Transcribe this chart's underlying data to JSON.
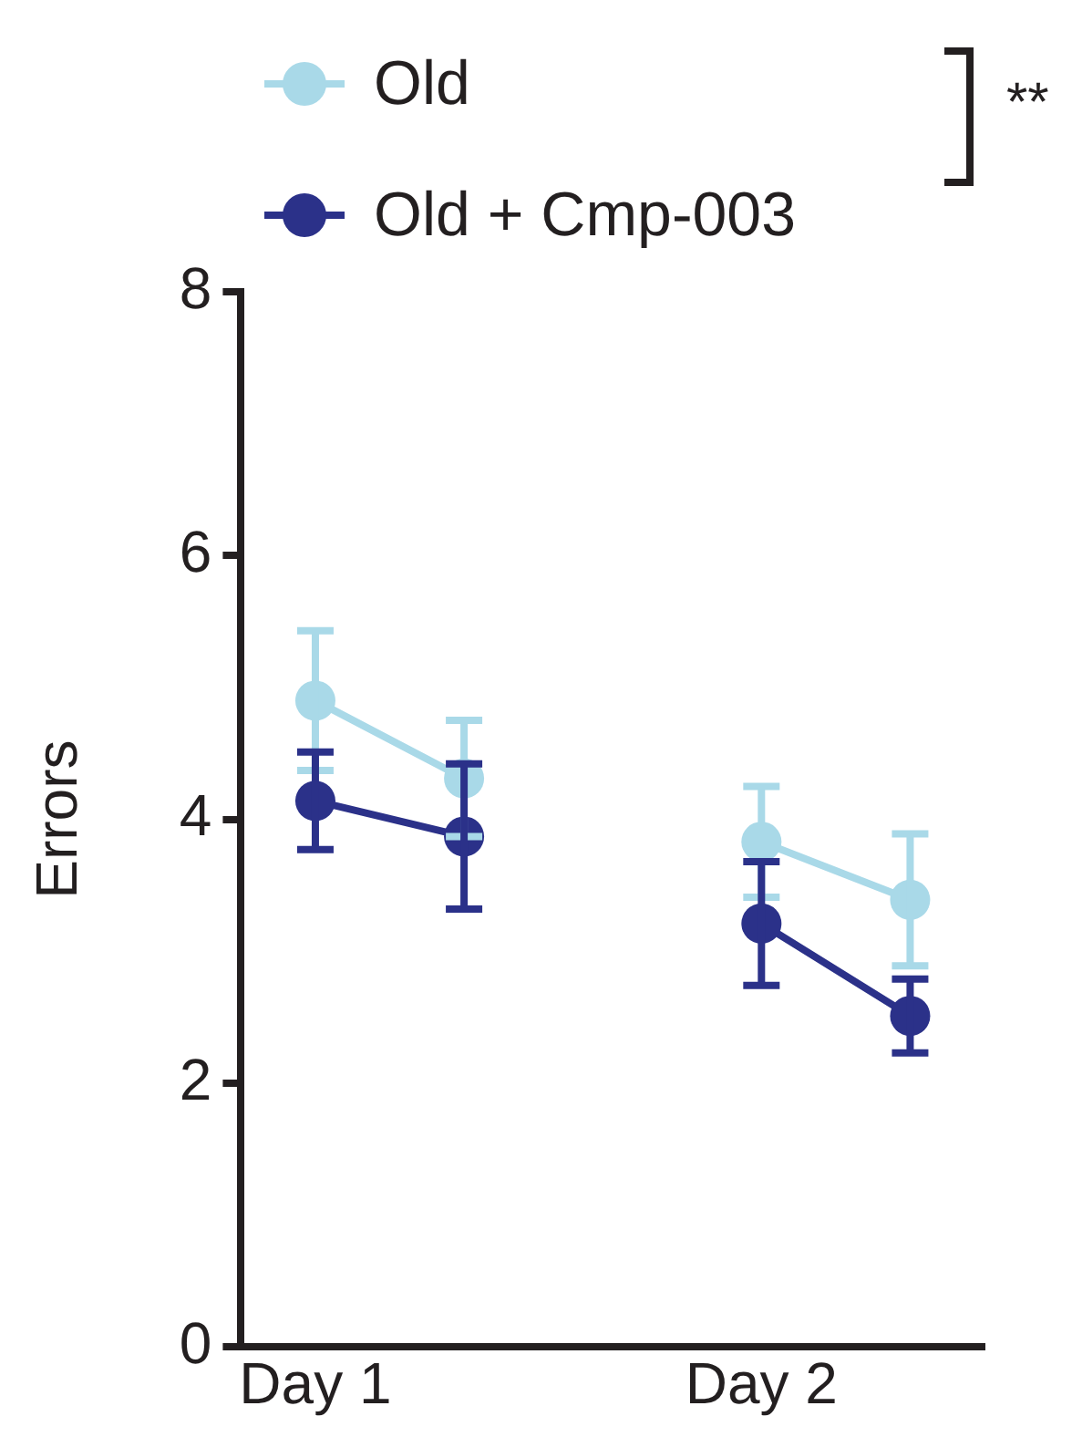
{
  "chart_data": {
    "type": "line",
    "ylabel": "Errors",
    "categories": [
      "Day 1",
      null,
      null,
      "Day 2",
      null
    ],
    "ylim": [
      0,
      8
    ],
    "yticks": [
      0,
      2,
      4,
      6,
      8
    ],
    "grid": false,
    "legend": "top",
    "marker": "circle",
    "line_style": "solid",
    "series": [
      {
        "name": "Old",
        "color": "#a9d9e8",
        "values": [
          4.9,
          4.31,
          null,
          3.83,
          3.39
        ],
        "errors": [
          0.53,
          0.44,
          null,
          0.42,
          0.5
        ]
      },
      {
        "name": "Old + Cmp-003",
        "color": "#2b3189",
        "values": [
          4.14,
          3.87,
          null,
          3.21,
          2.51
        ],
        "errors": [
          0.37,
          0.55,
          null,
          0.47,
          0.28
        ]
      }
    ],
    "annotations": [
      "**"
    ]
  }
}
